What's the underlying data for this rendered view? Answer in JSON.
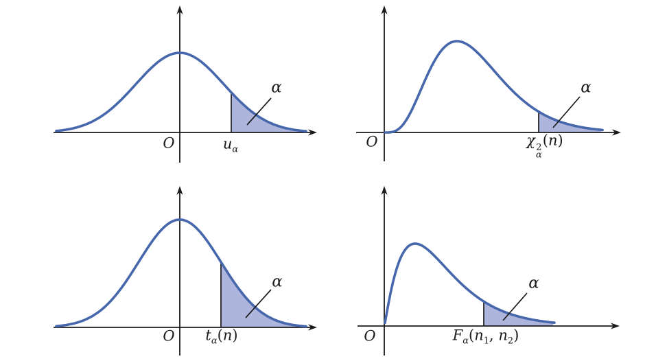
{
  "palette": {
    "curve": "#4767ac",
    "fill": "#aeb5dc",
    "axis": "#1a1a1a",
    "text": "#1a1a1a"
  },
  "panels": [
    {
      "id": "standard-normal",
      "origin_label": "O",
      "tail_label": "α",
      "critical_label": {
        "base": "u",
        "sub": "α"
      }
    },
    {
      "id": "chi-square",
      "origin_label": "O",
      "tail_label": "α",
      "critical_label": {
        "base": "χ",
        "sup": "2",
        "sub": "α",
        "open": "(",
        "var": "n",
        "close": ")"
      }
    },
    {
      "id": "t-distribution",
      "origin_label": "O",
      "tail_label": "α",
      "critical_label": {
        "base": "t",
        "sub": "α",
        "open": "(",
        "var": "n",
        "close": ")"
      }
    },
    {
      "id": "f-distribution",
      "origin_label": "O",
      "tail_label": "α",
      "critical_label": {
        "base": "F",
        "sub": "α",
        "open": "(",
        "var1": "n",
        "sub1": "1",
        "comma": ", ",
        "var2": "n",
        "sub2": "2",
        "close": ")"
      }
    }
  ]
}
